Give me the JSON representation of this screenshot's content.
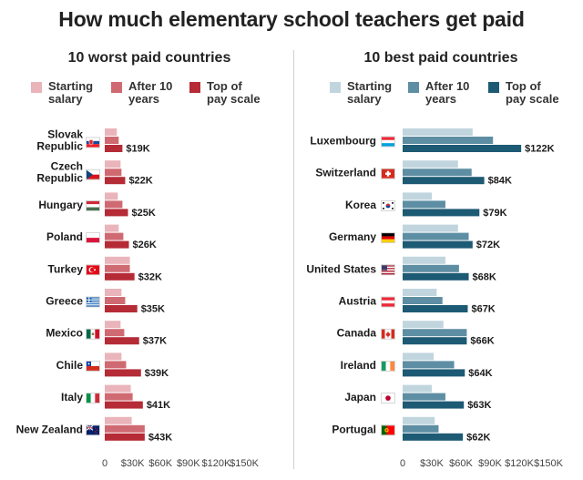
{
  "title": "How much elementary school teachers get paid",
  "colors": {
    "worst": [
      "#eab4bb",
      "#d06a72",
      "#b52b36"
    ],
    "best": [
      "#c1d5de",
      "#5e8ea3",
      "#1d5a74"
    ]
  },
  "chart_data": [
    {
      "type": "bar",
      "title": "10 worst paid countries",
      "legend": [
        "Starting\nsalary",
        "After 10\nyears",
        "Top of\npay scale"
      ],
      "categories": [
        "Slovak\nRepublic",
        "Czech\nRepublic",
        "Hungary",
        "Poland",
        "Turkey",
        "Greece",
        "Mexico",
        "Chile",
        "Italy",
        "New Zealand"
      ],
      "flags": [
        "sk",
        "cz",
        "hu",
        "pl",
        "tr",
        "gr",
        "mx",
        "cl",
        "it",
        "nz"
      ],
      "series": [
        {
          "name": "Starting salary",
          "values": [
            13,
            17,
            14,
            15,
            27,
            18,
            17,
            18,
            28,
            29
          ]
        },
        {
          "name": "After 10 years",
          "values": [
            15,
            18,
            19,
            20,
            27,
            22,
            21,
            23,
            30,
            43
          ]
        },
        {
          "name": "Top of pay scale",
          "values": [
            19,
            22,
            25,
            26,
            32,
            35,
            37,
            39,
            41,
            43
          ]
        }
      ],
      "data_labels": [
        "$19K",
        "$22K",
        "$25K",
        "$26K",
        "$32K",
        "$35K",
        "$37K",
        "$39K",
        "$41K",
        "$43K"
      ],
      "xlim": [
        0,
        150
      ],
      "xticks": [
        "0",
        "$30K",
        "$60K",
        "$90K",
        "$120K",
        "$150K"
      ]
    },
    {
      "type": "bar",
      "title": "10 best paid countries",
      "legend": [
        "Starting\nsalary",
        "After 10\nyears",
        "Top of\npay scale"
      ],
      "categories": [
        "Luxembourg",
        "Switzerland",
        "Korea",
        "Germany",
        "United States",
        "Austria",
        "Canada",
        "Ireland",
        "Japan",
        "Portugal"
      ],
      "flags": [
        "lu",
        "ch",
        "kr",
        "de",
        "us",
        "at",
        "ca",
        "ie",
        "jp",
        "pt"
      ],
      "series": [
        {
          "name": "Starting salary",
          "values": [
            72,
            57,
            30,
            57,
            44,
            35,
            42,
            32,
            30,
            33
          ]
        },
        {
          "name": "After 10 years",
          "values": [
            93,
            71,
            44,
            68,
            58,
            41,
            66,
            53,
            44,
            37
          ]
        },
        {
          "name": "Top of pay scale",
          "values": [
            122,
            84,
            79,
            72,
            68,
            67,
            66,
            64,
            63,
            62
          ]
        }
      ],
      "data_labels": [
        "$122K",
        "$84K",
        "$79K",
        "$72K",
        "$68K",
        "$67K",
        "$66K",
        "$64K",
        "$63K",
        "$62K"
      ],
      "xlim": [
        0,
        150
      ],
      "xticks": [
        "0",
        "$30K",
        "$60K",
        "$90K",
        "$120K",
        "$150K"
      ]
    }
  ]
}
